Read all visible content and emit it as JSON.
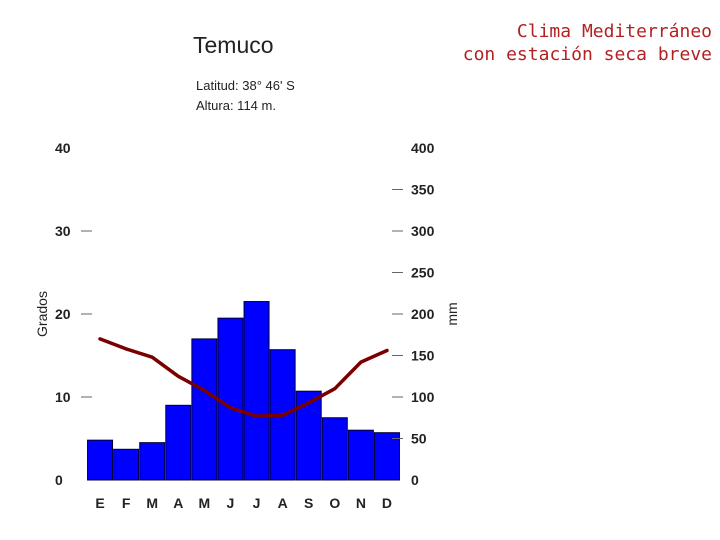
{
  "header": {
    "station": "Temuco",
    "latitude": "Latitud: 38° 46' S",
    "altitude": "Altura: 114 m.",
    "climate_line1": "Clima Mediterráneo",
    "climate_line2": "con estación seca breve"
  },
  "colors": {
    "bars": "#0000ff",
    "bar_border": "#000033",
    "temp_line": "#7a0000",
    "climate_text": "#b22222"
  },
  "chart_data": {
    "type": "bar",
    "categories": [
      "E",
      "F",
      "M",
      "A",
      "M",
      "J",
      "J",
      "A",
      "S",
      "O",
      "N",
      "D"
    ],
    "series": [
      {
        "kind": "bar",
        "axis": "right",
        "values": [
          48,
          37,
          45,
          90,
          170,
          195,
          215,
          157,
          107,
          75,
          60,
          57
        ]
      },
      {
        "kind": "line",
        "axis": "left",
        "values": [
          17.0,
          15.8,
          14.8,
          12.5,
          10.8,
          8.7,
          7.7,
          7.8,
          9.3,
          11.0,
          14.2,
          15.6
        ]
      }
    ],
    "ylabel_left": "Grados",
    "ylabel_right": "mm",
    "ylim_left": [
      0,
      40
    ],
    "ylim_right": [
      0,
      400
    ],
    "yticks_left": [
      "0",
      "10",
      "20",
      "30",
      "40"
    ],
    "yticks_right": [
      "0",
      "50",
      "100",
      "150",
      "200",
      "250",
      "300",
      "350",
      "400"
    ],
    "grid": false
  }
}
